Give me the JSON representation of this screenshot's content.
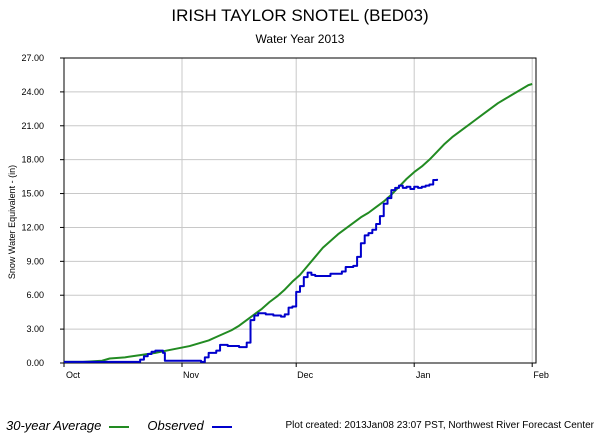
{
  "chart_data": {
    "type": "line",
    "title": "IRISH TAYLOR SNOTEL  (BED03)",
    "subtitle": "Water Year  2013",
    "ylabel": "Snow Water Equivalent - (in)",
    "ylim": [
      0,
      27
    ],
    "yticks": [
      "0.00",
      "3.00",
      "6.00",
      "9.00",
      "12.00",
      "15.00",
      "18.00",
      "21.00",
      "24.00",
      "27.00"
    ],
    "xlim": [
      0,
      124
    ],
    "xticks": [
      {
        "label": "Oct",
        "day": 0
      },
      {
        "label": "Nov",
        "day": 31
      },
      {
        "label": "Dec",
        "day": 61
      },
      {
        "label": "Jan",
        "day": 92
      },
      {
        "label": "Feb",
        "day": 123
      }
    ],
    "grid": true,
    "series": [
      {
        "name": "30-year Average",
        "color": "#228b22",
        "points": [
          [
            0,
            0.1
          ],
          [
            5,
            0.1
          ],
          [
            10,
            0.2
          ],
          [
            12,
            0.4
          ],
          [
            16,
            0.5
          ],
          [
            20,
            0.7
          ],
          [
            24,
            0.9
          ],
          [
            27,
            1.1
          ],
          [
            30,
            1.3
          ],
          [
            33,
            1.5
          ],
          [
            36,
            1.8
          ],
          [
            38,
            2.0
          ],
          [
            40,
            2.3
          ],
          [
            42,
            2.6
          ],
          [
            44,
            2.9
          ],
          [
            46,
            3.3
          ],
          [
            48,
            3.8
          ],
          [
            50,
            4.3
          ],
          [
            52,
            4.8
          ],
          [
            54,
            5.4
          ],
          [
            56,
            5.9
          ],
          [
            58,
            6.5
          ],
          [
            60,
            7.2
          ],
          [
            62,
            7.8
          ],
          [
            64,
            8.6
          ],
          [
            66,
            9.4
          ],
          [
            68,
            10.2
          ],
          [
            70,
            10.8
          ],
          [
            72,
            11.4
          ],
          [
            74,
            11.9
          ],
          [
            76,
            12.4
          ],
          [
            78,
            12.9
          ],
          [
            80,
            13.3
          ],
          [
            82,
            13.8
          ],
          [
            84,
            14.3
          ],
          [
            86,
            14.9
          ],
          [
            88,
            15.6
          ],
          [
            90,
            16.3
          ],
          [
            92,
            16.9
          ],
          [
            94,
            17.4
          ],
          [
            96,
            18.0
          ],
          [
            98,
            18.7
          ],
          [
            100,
            19.4
          ],
          [
            102,
            20.0
          ],
          [
            104,
            20.5
          ],
          [
            106,
            21.0
          ],
          [
            108,
            21.5
          ],
          [
            110,
            22.0
          ],
          [
            112,
            22.5
          ],
          [
            114,
            23.0
          ],
          [
            116,
            23.4
          ],
          [
            118,
            23.8
          ],
          [
            120,
            24.2
          ],
          [
            122,
            24.6
          ],
          [
            123,
            24.7
          ]
        ]
      },
      {
        "name": "Observed",
        "color": "#0000cc",
        "points": [
          [
            0,
            0.1
          ],
          [
            18,
            0.1
          ],
          [
            20,
            0.3
          ],
          [
            21,
            0.6
          ],
          [
            22,
            0.8
          ],
          [
            23,
            1.0
          ],
          [
            24,
            1.1
          ],
          [
            25,
            1.1
          ],
          [
            26,
            0.9
          ],
          [
            26.5,
            0.2
          ],
          [
            30,
            0.2
          ],
          [
            36,
            0.1
          ],
          [
            37,
            0.5
          ],
          [
            38,
            0.9
          ],
          [
            40,
            1.1
          ],
          [
            41,
            1.6
          ],
          [
            43,
            1.5
          ],
          [
            46,
            1.4
          ],
          [
            48,
            1.8
          ],
          [
            49,
            3.8
          ],
          [
            50,
            4.2
          ],
          [
            51,
            4.4
          ],
          [
            53,
            4.3
          ],
          [
            55,
            4.2
          ],
          [
            57,
            4.1
          ],
          [
            58,
            4.3
          ],
          [
            59,
            4.9
          ],
          [
            60,
            5.0
          ],
          [
            61,
            6.3
          ],
          [
            62,
            6.8
          ],
          [
            63,
            7.6
          ],
          [
            64,
            8.0
          ],
          [
            65,
            7.8
          ],
          [
            66,
            7.7
          ],
          [
            70,
            7.9
          ],
          [
            73,
            8.1
          ],
          [
            74,
            8.5
          ],
          [
            76,
            8.6
          ],
          [
            77,
            9.4
          ],
          [
            78,
            10.6
          ],
          [
            79,
            11.3
          ],
          [
            80,
            11.5
          ],
          [
            81,
            11.8
          ],
          [
            82,
            12.3
          ],
          [
            83,
            13.0
          ],
          [
            84,
            14.1
          ],
          [
            85,
            14.6
          ],
          [
            86,
            15.3
          ],
          [
            87,
            15.5
          ],
          [
            88,
            15.7
          ],
          [
            89,
            15.5
          ],
          [
            90,
            15.6
          ],
          [
            91,
            15.4
          ],
          [
            92,
            15.6
          ],
          [
            93,
            15.5
          ],
          [
            94,
            15.6
          ],
          [
            95,
            15.7
          ],
          [
            96,
            15.8
          ],
          [
            97,
            16.2
          ],
          [
            98,
            16.3
          ]
        ]
      }
    ]
  },
  "legend": {
    "average_label": "30-year Average",
    "observed_label": "Observed"
  },
  "credit": "Plot created:  2013Jan08 23:07 PST, Northwest River Forecast Center"
}
